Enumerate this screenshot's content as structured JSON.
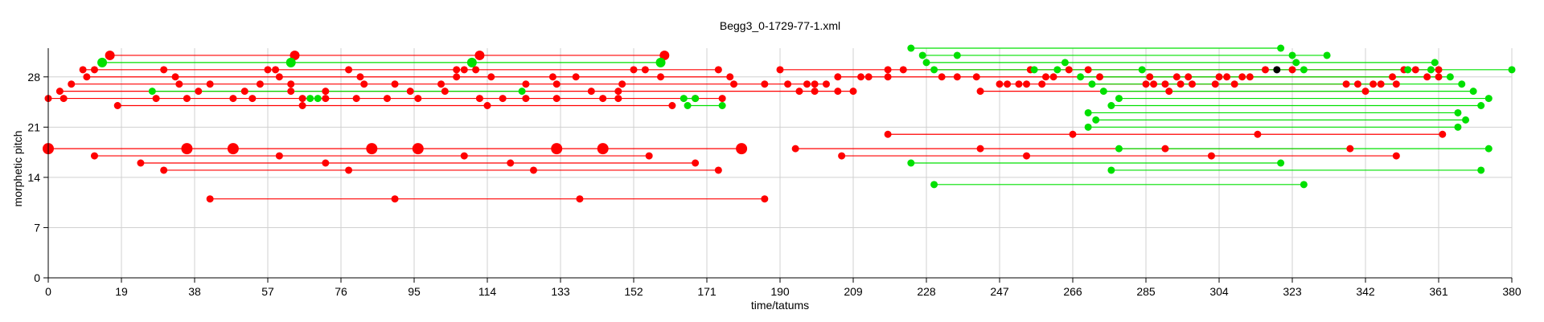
{
  "chart_data": {
    "type": "scatter",
    "title": "Begg3_0-1729-77-1.xml",
    "xlabel": "time/tatums",
    "ylabel": "morphetic pitch",
    "xlim": [
      0,
      380
    ],
    "ylim": [
      0,
      32
    ],
    "xticks": [
      0,
      19,
      38,
      57,
      76,
      95,
      114,
      133,
      152,
      171,
      190,
      209,
      228,
      247,
      266,
      285,
      304,
      323,
      342,
      361,
      380
    ],
    "yticks": [
      0,
      7,
      14,
      21,
      28
    ],
    "grid": true,
    "colors": {
      "red": "#ff0000",
      "green": "#00e000",
      "black": "#000000",
      "grid": "#d0d0d0"
    },
    "series": [
      {
        "color": "red",
        "segments": [
          {
            "y": 31,
            "x": [
              16,
              64,
              112,
              160
            ],
            "r": 6
          },
          {
            "y": 29,
            "x": [
              9,
              12,
              30,
              57,
              59,
              78,
              106,
              108,
              111,
              152,
              155,
              174
            ]
          },
          {
            "y": 29,
            "x": [
              190,
              218,
              222,
              255,
              265,
              270,
              316,
              323,
              352,
              355,
              361
            ]
          },
          {
            "y": 28,
            "x": [
              10,
              33,
              60,
              81,
              106,
              115,
              131,
              137,
              159,
              177
            ]
          },
          {
            "y": 28,
            "x": [
              205,
              211,
              213,
              218,
              232,
              236,
              241,
              259,
              261,
              273,
              286,
              293,
              296,
              304,
              306,
              310,
              312,
              349,
              358,
              361
            ]
          },
          {
            "y": 27,
            "x": [
              6,
              34,
              42,
              55,
              63,
              82,
              90,
              102,
              124,
              132,
              149,
              178,
              186,
              192,
              197,
              199,
              202
            ]
          },
          {
            "y": 27,
            "x": [
              247,
              249,
              252,
              254,
              258,
              285,
              287,
              290,
              294,
              297,
              303,
              308,
              337,
              340,
              344,
              346,
              350
            ]
          },
          {
            "y": 26,
            "x": [
              3,
              39,
              51,
              63,
              72,
              94,
              103,
              141,
              148,
              195,
              199,
              205,
              209
            ]
          },
          {
            "y": 26,
            "x": [
              242,
              291,
              342
            ]
          },
          {
            "y": 25,
            "x": [
              0,
              4,
              28,
              36,
              48,
              53,
              66,
              72,
              80,
              88,
              96,
              112,
              118,
              124,
              132,
              144,
              148,
              168,
              175
            ]
          },
          {
            "y": 24,
            "x": [
              18,
              66,
              114,
              162
            ]
          },
          {
            "y": 18,
            "x": [
              0,
              36,
              48,
              84,
              96,
              132,
              144,
              180
            ],
            "r": 7
          },
          {
            "y": 18,
            "x": [
              194,
              242,
              290,
              338
            ]
          },
          {
            "y": 17,
            "x": [
              12,
              60,
              108,
              156
            ]
          },
          {
            "y": 17,
            "x": [
              206,
              254,
              302,
              350
            ]
          },
          {
            "y": 16,
            "x": [
              24,
              72,
              120,
              168
            ]
          },
          {
            "y": 15,
            "x": [
              30,
              78,
              126,
              174
            ]
          },
          {
            "y": 20,
            "x": [
              218,
              266,
              314,
              362
            ]
          },
          {
            "y": 11,
            "x": [
              42,
              90,
              138,
              186
            ]
          }
        ]
      },
      {
        "color": "green",
        "segments": [
          {
            "y": 30,
            "x": [
              14,
              63,
              110,
              159
            ],
            "r": 6
          },
          {
            "y": 32,
            "x": [
              224,
              320
            ]
          },
          {
            "y": 31,
            "x": [
              227,
              236,
              323,
              332
            ]
          },
          {
            "y": 30,
            "x": [
              228,
              264,
              324,
              360
            ]
          },
          {
            "y": 29,
            "x": [
              230,
              256,
              262,
              284,
              326,
              353,
              359,
              380
            ]
          },
          {
            "y": 28,
            "x": [
              268,
              364
            ]
          },
          {
            "y": 27,
            "x": [
              271,
              367
            ]
          },
          {
            "y": 26,
            "x": [
              274,
              370
            ]
          },
          {
            "y": 25,
            "x": [
              278,
              374
            ]
          },
          {
            "y": 24,
            "x": [
              276,
              372
            ]
          },
          {
            "y": 23,
            "x": [
              270,
              366
            ]
          },
          {
            "y": 22,
            "x": [
              272,
              368
            ]
          },
          {
            "y": 21,
            "x": [
              270,
              366
            ]
          },
          {
            "y": 18,
            "x": [
              278,
              374
            ]
          },
          {
            "y": 16,
            "x": [
              224,
              320
            ]
          },
          {
            "y": 15,
            "x": [
              276,
              372
            ]
          },
          {
            "y": 13,
            "x": [
              230,
              326
            ]
          },
          {
            "y": 25,
            "x": [
              165,
              168
            ]
          },
          {
            "y": 24,
            "x": [
              166,
              175
            ]
          },
          {
            "y": 25,
            "x": [
              68,
              70
            ]
          },
          {
            "y": 26,
            "x": [
              27,
              123
            ]
          }
        ]
      },
      {
        "color": "black",
        "segments": [
          {
            "y": 29,
            "x": [
              319
            ]
          }
        ]
      }
    ]
  }
}
